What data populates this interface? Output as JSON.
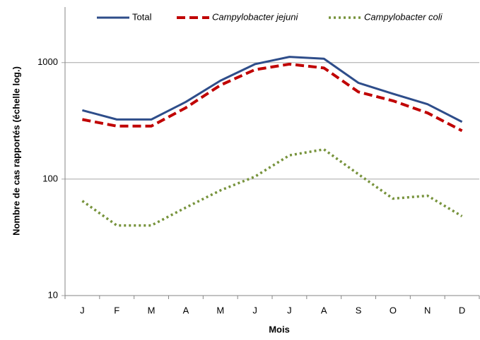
{
  "chart_data": {
    "type": "line",
    "x_label": "Mois",
    "y_label": "Nombre de cas rapportés (échelle log.)",
    "categories": [
      "J",
      "F",
      "M",
      "A",
      "M",
      "J",
      "J",
      "A",
      "S",
      "O",
      "N",
      "D"
    ],
    "series": [
      {
        "name": "Total",
        "color": "#2e4d8a",
        "dash": "solid",
        "values": [
          390,
          325,
          325,
          460,
          700,
          970,
          1120,
          1080,
          670,
          540,
          440,
          310
        ]
      },
      {
        "name": "Campylobacter jejuni",
        "color": "#c00000",
        "dash": "dash",
        "values": [
          325,
          285,
          285,
          410,
          640,
          870,
          970,
          900,
          560,
          470,
          370,
          260
        ]
      },
      {
        "name": "Campylobacter coli",
        "color": "#77933c",
        "dash": "dot",
        "values": [
          65,
          40,
          40,
          57,
          80,
          105,
          160,
          180,
          110,
          68,
          72,
          48
        ]
      }
    ],
    "ylim": [
      10,
      3000
    ],
    "yticks": [
      10,
      100,
      1000
    ],
    "log_scale": true,
    "grid": true,
    "legend": "top"
  }
}
